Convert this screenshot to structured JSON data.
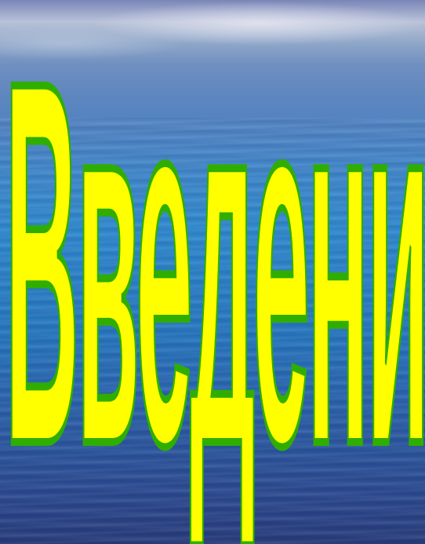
{
  "slide": {
    "title": "Введение во храм Богородицы"
  },
  "colors": {
    "title_fill": "#ffff00",
    "title_outline": "#2fae00",
    "sea_top": "#b9c2d8",
    "sea_mid": "#2f88cc",
    "sea_bottom": "#283a78"
  }
}
